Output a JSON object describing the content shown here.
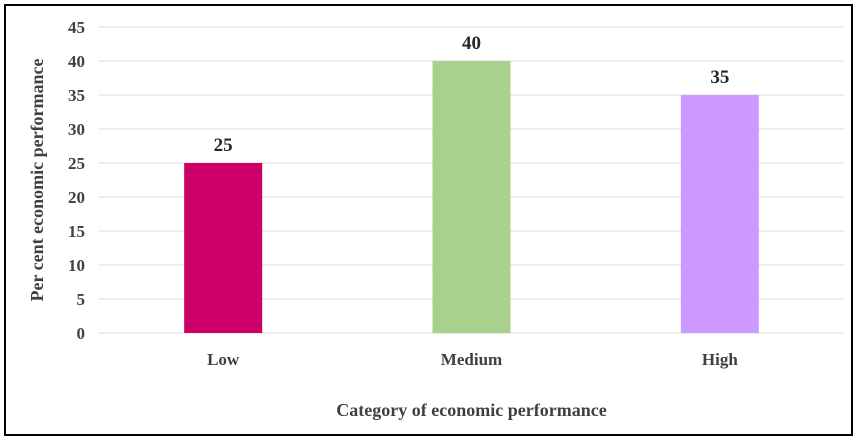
{
  "chart_data": {
    "type": "bar",
    "categories": [
      "Low",
      "Medium",
      "High"
    ],
    "values": [
      25,
      40,
      35
    ],
    "data_labels": [
      "25",
      "40",
      "35"
    ],
    "colors": [
      "#cc0066",
      "#a9d18e",
      "#cc99ff"
    ],
    "title": "",
    "xlabel": "Category of economic performance",
    "ylabel": "Per cent economic performance",
    "ylim": [
      0,
      45
    ],
    "yticks": [
      "0",
      "5",
      "10",
      "15",
      "20",
      "25",
      "30",
      "35",
      "40",
      "45"
    ],
    "grid": true,
    "gridline_color": "#d9d9d9",
    "legend": "none"
  }
}
